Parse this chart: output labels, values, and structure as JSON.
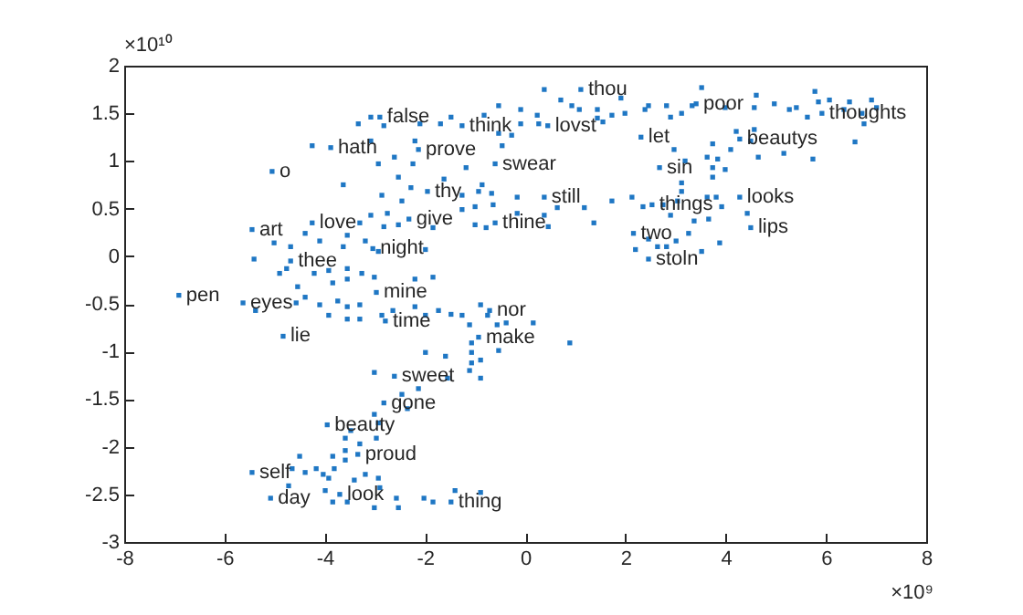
{
  "chart_data": {
    "type": "scatter",
    "marker": "square",
    "xlim": [
      -8,
      8
    ],
    "xticks": [
      -8,
      -6,
      -4,
      -2,
      0,
      2,
      4,
      6,
      8
    ],
    "ylim": [
      -3,
      2
    ],
    "yticks": [
      -3,
      -2.5,
      -2,
      -1.5,
      -1,
      -0.5,
      0,
      0.5,
      1,
      1.5,
      2
    ],
    "series": [
      {
        "color": "#1f77c4",
        "x": [
          -0.53,
          -0.09,
          -0.82,
          -1.48,
          -1.69,
          -2.1,
          -2.82,
          -3.33,
          -3.08,
          -4.25,
          -3.08,
          -2.93,
          -2.61,
          -2.2,
          -2.24,
          -2.53,
          -3.63,
          -1.62,
          -1.18,
          -0.86,
          -0.46,
          -0.53,
          -2.86,
          -2.28,
          -2.46,
          -1.26,
          -0.93,
          -0.67,
          -1.26,
          -1.0,
          -0.64,
          -1.0,
          -0.78,
          -3.08,
          -2.75,
          -3.3,
          -2.82,
          -2.53,
          -3.55,
          -3.19,
          -1.84,
          -5.01,
          -4.68,
          -4.39,
          -5.41,
          -4.1,
          -3.63,
          -2.93,
          -1.99,
          -4.9,
          -4.76,
          -4.21,
          -3.92,
          -3.55,
          -3.26,
          -3.84,
          -3.55,
          -4.54,
          -3.01,
          -2.2,
          -1.84,
          0.38,
          0.71,
          0.93,
          1.08,
          1.44,
          1.44,
          1.55,
          1.73,
          1.99,
          1.91,
          2.39,
          2.46,
          2.82,
          2.9,
          3.12,
          3.33,
          3.52,
          3.99,
          4.57,
          4.61,
          4.97,
          5.27,
          5.41,
          5.63,
          5.78,
          5.85,
          6.07,
          6.36,
          6.47,
          6.72,
          6.91,
          7.01,
          6.76,
          6.58,
          5.74,
          5.16,
          4.65,
          4.57,
          4.5,
          4.21,
          4.1,
          3.74,
          3.63,
          3.84,
          3.74,
          3.74,
          3.99,
          2.97,
          3.19,
          3.12,
          3.12,
          3.04,
          2.75,
          2.35,
          2.13,
          1.73,
          1.18,
          1.37,
          0.64,
          0.38,
          0.46,
          -0.16,
          -0.16,
          3.63,
          3.81,
          3.92,
          3.66,
          3.37,
          2.9,
          3.26,
          3.01,
          2.64,
          2.82,
          2.46,
          2.2,
          3.52,
          3.88,
          4.43,
          -0.09,
          0.24,
          0.27,
          -0.27,
          -4.57,
          -4.1,
          -3.92,
          -3.74,
          -3.55,
          -3.3,
          -3.55,
          -3.3,
          -2.86,
          -2.64,
          -2.2,
          -1.99,
          -1.73,
          -1.48,
          -1.26,
          -0.89,
          -0.75,
          -0.56,
          -1.11,
          -0.38,
          0.16,
          -0.53,
          -1.07,
          -1.07,
          -0.89,
          -1.07,
          -1.11,
          -0.89,
          -1.55,
          -1.59,
          -1.99,
          -3.01,
          -2.13,
          -2.46,
          -2.35,
          -3.01,
          -2.93,
          -3.48,
          -3.59,
          -2.97,
          -3.3,
          -3.59,
          -3.59,
          -3.84,
          -4.5,
          -4.17,
          -4.39,
          -4.03,
          -4.65,
          -4.72,
          -3.92,
          -3.81,
          -3.41,
          -3.19,
          -2.93,
          -2.9,
          -3.99,
          -3.84,
          -3.55,
          -3.01,
          -2.57,
          -2.53,
          -2.02,
          -1.84,
          -1.4,
          -0.89,
          0.89,
          -4.39,
          -5.38,
          1.11,
          3.41,
          5.92,
          -2.9,
          -1.26,
          0.45,
          -3.88,
          -2.13,
          2.31,
          4.28,
          -5.05,
          -0.6,
          2.68,
          -1.95,
          0.38,
          2.53,
          4.28,
          -2.32,
          -0.6,
          4.5,
          -5.45,
          -4.25,
          2.16,
          -3.04,
          -4.68,
          2.46,
          -6.91,
          -5.63,
          -2.97,
          -2.79,
          -0.71,
          -0.93,
          -4.83,
          -2.61,
          -2.82,
          -3.95,
          -3.34,
          -5.45,
          -5.08,
          -3.7,
          -1.48
        ],
        "values": [
          1.58,
          1.54,
          1.48,
          1.46,
          1.39,
          1.39,
          1.37,
          1.39,
          1.46,
          1.16,
          1.21,
          0.97,
          1.04,
          1.21,
          0.97,
          0.83,
          0.75,
          0.81,
          0.93,
          0.75,
          1.16,
          1.29,
          0.64,
          0.72,
          0.58,
          0.64,
          0.68,
          0.66,
          0.49,
          0.52,
          0.54,
          0.33,
          0.3,
          0.43,
          0.45,
          0.35,
          0.31,
          0.33,
          0.22,
          0.16,
          0.3,
          0.14,
          0.1,
          0.24,
          -0.03,
          0.16,
          0.1,
          0.05,
          0.07,
          -0.18,
          -0.13,
          -0.18,
          -0.15,
          -0.13,
          -0.18,
          -0.28,
          -0.24,
          -0.32,
          -0.22,
          -0.24,
          -0.22,
          1.75,
          1.64,
          1.58,
          1.54,
          1.54,
          1.45,
          1.41,
          1.48,
          1.5,
          1.66,
          1.54,
          1.58,
          1.58,
          1.46,
          1.5,
          1.58,
          1.77,
          1.56,
          1.56,
          1.69,
          1.6,
          1.54,
          1.56,
          1.46,
          1.73,
          1.62,
          1.64,
          1.54,
          1.62,
          1.5,
          1.64,
          1.56,
          1.39,
          1.2,
          1.02,
          1.08,
          1.04,
          1.33,
          1.21,
          1.31,
          1.12,
          1.18,
          1.04,
          1.02,
          0.93,
          0.83,
          0.91,
          1.12,
          1.0,
          0.77,
          0.68,
          0.58,
          0.54,
          0.52,
          0.62,
          0.58,
          0.51,
          0.35,
          0.51,
          0.43,
          0.31,
          0.62,
          0.45,
          0.62,
          0.62,
          0.52,
          0.39,
          0.37,
          0.43,
          0.24,
          0.16,
          0.1,
          0.1,
          0.18,
          0.07,
          0.05,
          0.14,
          0.45,
          1.39,
          1.48,
          1.39,
          1.27,
          -0.49,
          -0.51,
          -0.62,
          -0.47,
          -0.53,
          -0.51,
          -0.66,
          -0.66,
          -0.62,
          -0.57,
          -0.53,
          -0.62,
          -0.57,
          -0.61,
          -0.62,
          -0.51,
          -0.62,
          -0.72,
          -0.72,
          -0.7,
          -0.7,
          -0.99,
          -0.91,
          -1.01,
          -1.09,
          -1.12,
          -1.2,
          -1.28,
          -1.28,
          -1.05,
          -1.01,
          -1.22,
          -1.39,
          -1.45,
          -1.6,
          -1.66,
          -1.75,
          -1.83,
          -1.91,
          -1.91,
          -1.97,
          -2.04,
          -2.14,
          -2.1,
          -2.1,
          -2.23,
          -2.27,
          -2.29,
          -2.23,
          -2.41,
          -2.33,
          -2.23,
          -2.35,
          -2.29,
          -2.33,
          -2.43,
          -2.46,
          -2.58,
          -2.58,
          -2.64,
          -2.54,
          -2.64,
          -2.54,
          -2.58,
          -2.46,
          -2.48,
          -0.91,
          -0.43,
          -0.57,
          1.75,
          1.6,
          1.5,
          1.46,
          1.37,
          1.37,
          1.14,
          1.12,
          1.25,
          1.23,
          0.89,
          0.97,
          0.93,
          0.68,
          0.62,
          0.54,
          0.62,
          0.39,
          0.35,
          0.3,
          0.28,
          0.35,
          0.24,
          0.08,
          -0.05,
          -0.03,
          -0.41,
          -0.49,
          -0.38,
          -0.68,
          -0.57,
          -0.85,
          -0.84,
          -1.26,
          -1.54,
          -1.77,
          -2.08,
          -2.27,
          -2.54,
          -2.5,
          -2.58
        ]
      }
    ],
    "annotations": [
      "×10¹⁰",
      "×10⁹",
      {
        "text": "thou",
        "x": 1.11,
        "y": 1.75
      },
      {
        "text": "poor",
        "x": 3.41,
        "y": 1.6
      },
      {
        "text": "thoughts",
        "x": 5.92,
        "y": 1.5
      },
      {
        "text": "false",
        "x": -2.9,
        "y": 1.46
      },
      {
        "text": "think",
        "x": -1.26,
        "y": 1.37
      },
      {
        "text": "lovst",
        "x": 0.45,
        "y": 1.37
      },
      {
        "text": "hath",
        "x": -3.88,
        "y": 1.14
      },
      {
        "text": "prove",
        "x": -2.13,
        "y": 1.12
      },
      {
        "text": "let",
        "x": 2.31,
        "y": 1.25
      },
      {
        "text": "beautys",
        "x": 4.28,
        "y": 1.23
      },
      {
        "text": "o",
        "x": -5.05,
        "y": 0.89
      },
      {
        "text": "swear",
        "x": -0.6,
        "y": 0.97
      },
      {
        "text": "sin",
        "x": 2.68,
        "y": 0.93
      },
      {
        "text": "thy",
        "x": -1.95,
        "y": 0.68
      },
      {
        "text": "still",
        "x": 0.38,
        "y": 0.62
      },
      {
        "text": "things",
        "x": 2.53,
        "y": 0.54
      },
      {
        "text": "looks",
        "x": 4.28,
        "y": 0.62
      },
      {
        "text": "give",
        "x": -2.32,
        "y": 0.39
      },
      {
        "text": "thine",
        "x": -0.6,
        "y": 0.35
      },
      {
        "text": "lips",
        "x": 4.5,
        "y": 0.3
      },
      {
        "text": "art",
        "x": -5.45,
        "y": 0.28
      },
      {
        "text": "love",
        "x": -4.25,
        "y": 0.35
      },
      {
        "text": "two",
        "x": 2.16,
        "y": 0.24
      },
      {
        "text": "night",
        "x": -3.04,
        "y": 0.08
      },
      {
        "text": "thee",
        "x": -4.68,
        "y": -0.05
      },
      {
        "text": "stoln",
        "x": 2.46,
        "y": -0.03
      },
      {
        "text": "pen",
        "x": -6.91,
        "y": -0.41
      },
      {
        "text": "eyes",
        "x": -5.63,
        "y": -0.49
      },
      {
        "text": "mine",
        "x": -2.97,
        "y": -0.38
      },
      {
        "text": "time",
        "x": -2.79,
        "y": -0.68
      },
      {
        "text": "nor",
        "x": -0.71,
        "y": -0.57
      },
      {
        "text": "make",
        "x": -0.93,
        "y": -0.85
      },
      {
        "text": "lie",
        "x": -4.83,
        "y": -0.84
      },
      {
        "text": "sweet",
        "x": -2.61,
        "y": -1.26
      },
      {
        "text": "gone",
        "x": -2.82,
        "y": -1.54
      },
      {
        "text": "beauty",
        "x": -3.95,
        "y": -1.77
      },
      {
        "text": "proud",
        "x": -3.34,
        "y": -2.08
      },
      {
        "text": "self",
        "x": -5.45,
        "y": -2.27
      },
      {
        "text": "day",
        "x": -5.08,
        "y": -2.54
      },
      {
        "text": "look",
        "x": -3.7,
        "y": -2.5
      },
      {
        "text": "thing",
        "x": -1.48,
        "y": -2.58
      }
    ]
  }
}
